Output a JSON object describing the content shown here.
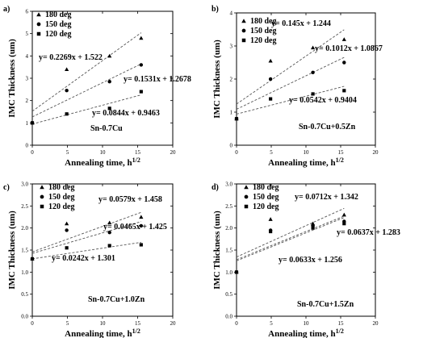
{
  "chart_data": [
    {
      "type": "scatter",
      "panel_label": "a)",
      "alloy": "Sn-0.7Cu",
      "xlabel": "Annealing time, h",
      "xlabel_sup": "1/2",
      "ylabel": "IMC Thickness (um)",
      "xlim": [
        0,
        20
      ],
      "ylim": [
        0,
        6
      ],
      "xticks": [
        0,
        5,
        10,
        15,
        20
      ],
      "yticks": [
        0,
        1,
        2,
        3,
        4,
        5,
        6
      ],
      "legend_position": "top-left",
      "series": [
        {
          "name": "180 deg",
          "marker": "triangle",
          "x": [
            0,
            4.9,
            11.0,
            15.5
          ],
          "y": [
            1.0,
            3.4,
            4.0,
            4.8
          ],
          "fit": {
            "slope": 0.2269,
            "intercept": 1.522
          },
          "equation": "y= 0.2269x + 1.522"
        },
        {
          "name": "150 deg",
          "marker": "circle",
          "x": [
            0,
            4.9,
            11.0,
            15.5
          ],
          "y": [
            1.0,
            2.45,
            2.85,
            3.6
          ],
          "fit": {
            "slope": 0.1531,
            "intercept": 1.2678
          },
          "equation": "y= 0.1531x + 1.2678"
        },
        {
          "name": "120 deg",
          "marker": "square",
          "x": [
            0,
            4.9,
            11.0,
            15.5
          ],
          "y": [
            1.0,
            1.4,
            1.65,
            2.4
          ],
          "fit": {
            "slope": 0.0844,
            "intercept": 0.9463
          },
          "equation": "y= 0.0844x + 0.9463"
        }
      ]
    },
    {
      "type": "scatter",
      "panel_label": "b)",
      "alloy": "Sn-0.7Cu+0.5Zn",
      "xlabel": "Annealing time, h",
      "xlabel_sup": "1/2",
      "ylabel": "IMC Thickness (um)",
      "xlim": [
        0,
        20
      ],
      "ylim": [
        0,
        4
      ],
      "xticks": [
        0,
        5,
        10,
        15,
        20
      ],
      "yticks": [
        0,
        1,
        2,
        3,
        4
      ],
      "legend_position": "top-left",
      "series": [
        {
          "name": "180 deg",
          "marker": "triangle",
          "x": [
            0,
            4.9,
            11.0,
            15.5
          ],
          "y": [
            0.8,
            2.55,
            2.95,
            3.2
          ],
          "fit": {
            "slope": 0.145,
            "intercept": 1.244
          },
          "equation": "y= 0.145x + 1.244"
        },
        {
          "name": "150 deg",
          "marker": "circle",
          "x": [
            0,
            4.9,
            11.0,
            15.5
          ],
          "y": [
            0.8,
            2.0,
            2.2,
            2.5
          ],
          "fit": {
            "slope": 0.1012,
            "intercept": 1.0867
          },
          "equation": "y= 0.1012x + 1.0867"
        },
        {
          "name": "120 deg",
          "marker": "square",
          "x": [
            0,
            4.9,
            11.0,
            15.5
          ],
          "y": [
            0.8,
            1.4,
            1.55,
            1.65
          ],
          "fit": {
            "slope": 0.0542,
            "intercept": 0.9404
          },
          "equation": "y= 0.0542x + 0.9404"
        }
      ]
    },
    {
      "type": "scatter",
      "panel_label": "c)",
      "alloy": "Sn-0.7Cu+1.0Zn",
      "xlabel": "Annealing time, h",
      "xlabel_sup": "1/2",
      "ylabel": "IMC Thickness (um)",
      "xlim": [
        0,
        20
      ],
      "ylim": [
        0,
        3.0
      ],
      "xticks": [
        0,
        5,
        10,
        15,
        20
      ],
      "yticks": [
        0.0,
        0.5,
        1.0,
        1.5,
        2.0,
        2.5,
        3.0
      ],
      "legend_position": "top-left",
      "series": [
        {
          "name": "180 deg",
          "marker": "triangle",
          "x": [
            0,
            4.9,
            11.0,
            15.5
          ],
          "y": [
            1.3,
            2.1,
            2.12,
            2.25
          ],
          "fit": {
            "slope": 0.0579,
            "intercept": 1.458
          },
          "equation": "y= 0.0579x + 1.458"
        },
        {
          "name": "150 deg",
          "marker": "circle",
          "x": [
            0,
            4.9,
            11.0,
            15.5
          ],
          "y": [
            1.3,
            1.95,
            1.9,
            2.05
          ],
          "fit": {
            "slope": 0.0465,
            "intercept": 1.425
          },
          "equation": "y= 0.0465x + 1.425"
        },
        {
          "name": "120 deg",
          "marker": "square",
          "x": [
            0,
            4.9,
            11.0,
            15.5
          ],
          "y": [
            1.3,
            1.55,
            1.6,
            1.62
          ],
          "fit": {
            "slope": 0.0242,
            "intercept": 1.301
          },
          "equation": "y= 0.0242x + 1.301"
        }
      ]
    },
    {
      "type": "scatter",
      "panel_label": "d)",
      "alloy": "Sn-0.7Cu+1.5Zn",
      "xlabel": "Annealing time, h",
      "xlabel_sup": "1/2",
      "ylabel": "IMC Thickness (um)",
      "xlim": [
        0,
        20
      ],
      "ylim": [
        0,
        3.0
      ],
      "xticks": [
        0,
        5,
        10,
        15,
        20
      ],
      "yticks": [
        0.0,
        0.5,
        1.0,
        1.5,
        2.0,
        2.5,
        3.0
      ],
      "legend_position": "top-left",
      "series": [
        {
          "name": "180 deg",
          "marker": "triangle",
          "x": [
            0,
            4.9,
            11.0,
            15.5
          ],
          "y": [
            1.0,
            2.2,
            2.1,
            2.3
          ],
          "fit": {
            "slope": 0.0712,
            "intercept": 1.342
          },
          "equation": "y= 0.0712x + 1.342"
        },
        {
          "name": "150 deg",
          "marker": "circle",
          "x": [
            0,
            4.9,
            11.0,
            15.5
          ],
          "y": [
            1.0,
            1.95,
            2.05,
            2.15
          ],
          "fit": {
            "slope": 0.0637,
            "intercept": 1.283
          },
          "equation": "y= 0.0637x + 1.283"
        },
        {
          "name": "120 deg",
          "marker": "square",
          "x": [
            0,
            4.9,
            11.0,
            15.5
          ],
          "y": [
            1.0,
            1.92,
            2.0,
            2.1
          ],
          "fit": {
            "slope": 0.0633,
            "intercept": 1.256
          },
          "equation": "y= 0.0633x + 1.256"
        }
      ]
    }
  ]
}
